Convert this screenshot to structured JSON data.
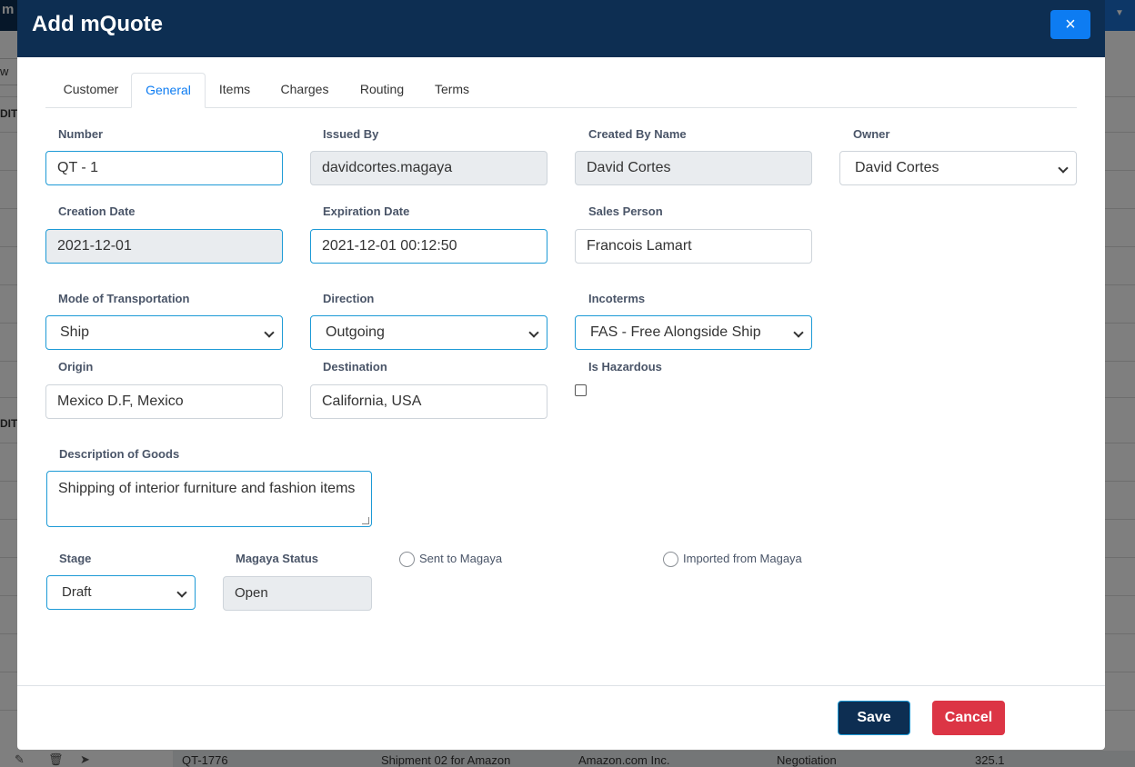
{
  "background": {
    "brand": "m",
    "filter_text": "w",
    "section_headers": [
      "DIT",
      "DIT"
    ],
    "bottom_row": {
      "number": "QT-1776",
      "description": "Shipment 02 for Amazon",
      "customer": "Amazon.com Inc.",
      "stage": "Negotiation",
      "amount": "325.1"
    }
  },
  "modal": {
    "title": "Add mQuote",
    "close_icon": "×",
    "tabs": [
      {
        "label": "Customer",
        "active": false
      },
      {
        "label": "General",
        "active": true
      },
      {
        "label": "Items",
        "active": false
      },
      {
        "label": "Charges",
        "active": false
      },
      {
        "label": "Routing",
        "active": false
      },
      {
        "label": "Terms",
        "active": false
      }
    ],
    "fields": {
      "number": {
        "label": "Number",
        "value": "QT - 1"
      },
      "issued_by": {
        "label": "Issued By",
        "value": "davidcortes.magaya"
      },
      "created_by_name": {
        "label": "Created By Name",
        "value": "David Cortes"
      },
      "owner": {
        "label": "Owner",
        "value": "David Cortes"
      },
      "creation_date": {
        "label": "Creation Date",
        "value": "2021-12-01"
      },
      "expiration_date": {
        "label": "Expiration Date",
        "value": "2021-12-01 00:12:50"
      },
      "sales_person": {
        "label": "Sales Person",
        "value": "Francois Lamart"
      },
      "mode_of_transportation": {
        "label": "Mode of Transportation",
        "value": "Ship"
      },
      "direction": {
        "label": "Direction",
        "value": "Outgoing"
      },
      "incoterms": {
        "label": "Incoterms",
        "value": "FAS - Free Alongside Ship"
      },
      "origin": {
        "label": "Origin",
        "value": "Mexico D.F, Mexico"
      },
      "destination": {
        "label": "Destination",
        "value": "California, USA"
      },
      "is_hazardous": {
        "label": "Is Hazardous",
        "checked": false
      },
      "description_of_goods": {
        "label": "Description of Goods",
        "value": "Shipping of interior furniture and fashion items"
      },
      "stage": {
        "label": "Stage",
        "value": "Draft"
      },
      "magaya_status": {
        "label": "Magaya Status",
        "value": "Open"
      },
      "sent_to_magaya": {
        "label": "Sent to Magaya",
        "selected": false
      },
      "imported_from_magaya": {
        "label": "Imported from Magaya",
        "selected": false
      }
    },
    "buttons": {
      "save": "Save",
      "cancel": "Cancel"
    }
  },
  "colors": {
    "header": "#0d2e52",
    "accent": "#0d7cf2",
    "focus_border": "#1d9ad6",
    "cancel": "#dc3545"
  }
}
